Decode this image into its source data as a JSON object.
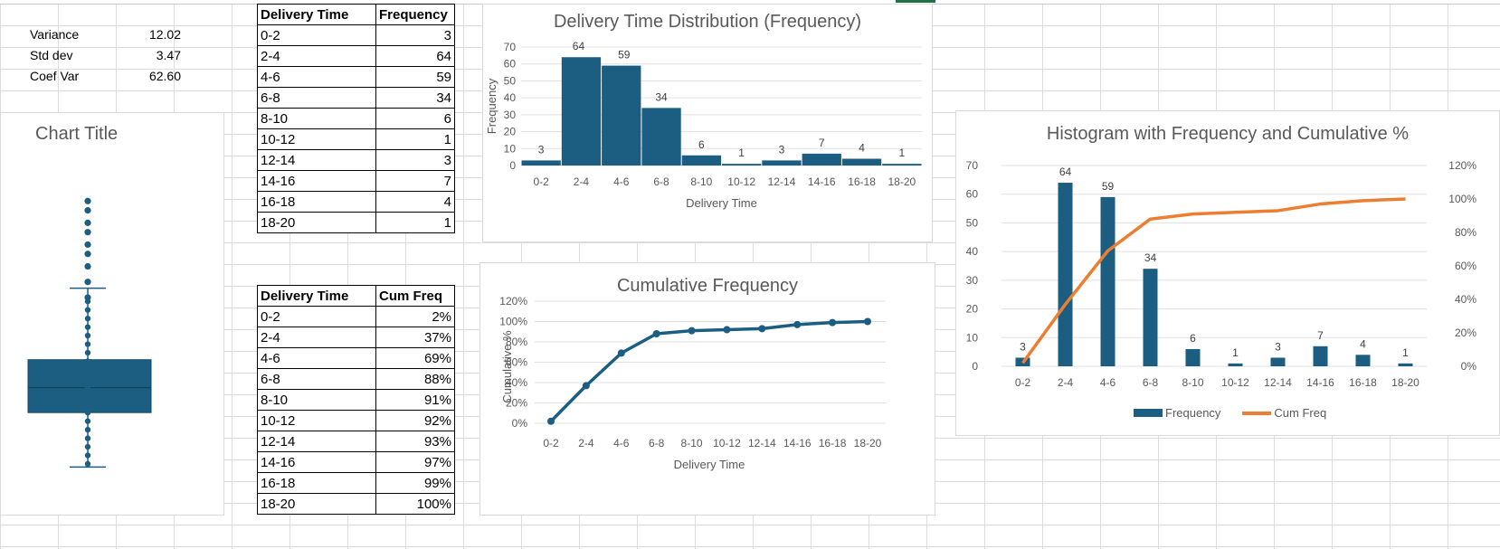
{
  "stats": [
    {
      "label": "Variance",
      "value": "12.02"
    },
    {
      "label": "Std dev",
      "value": "3.47"
    },
    {
      "label": "Coef Var",
      "value": "62.60"
    }
  ],
  "freq_table": {
    "headers": [
      "Delivery Time",
      "Frequency"
    ],
    "rows": [
      [
        "0-2",
        "3"
      ],
      [
        "2-4",
        "64"
      ],
      [
        "4-6",
        "59"
      ],
      [
        "6-8",
        "34"
      ],
      [
        "8-10",
        "6"
      ],
      [
        "10-12",
        "1"
      ],
      [
        "12-14",
        "3"
      ],
      [
        "14-16",
        "7"
      ],
      [
        "16-18",
        "4"
      ],
      [
        "18-20",
        "1"
      ]
    ]
  },
  "cum_table": {
    "headers": [
      "Delivery Time",
      "Cum Freq"
    ],
    "rows": [
      [
        "0-2",
        "2%"
      ],
      [
        "2-4",
        "37%"
      ],
      [
        "4-6",
        "69%"
      ],
      [
        "6-8",
        "88%"
      ],
      [
        "8-10",
        "91%"
      ],
      [
        "10-12",
        "92%"
      ],
      [
        "12-14",
        "93%"
      ],
      [
        "14-16",
        "97%"
      ],
      [
        "16-18",
        "99%"
      ],
      [
        "18-20",
        "100%"
      ]
    ]
  },
  "chart_data": [
    {
      "id": "boxplot",
      "type": "box",
      "title": "Chart Title",
      "color": "#1b5e82",
      "whisker_low": 0.5,
      "q1": 4.0,
      "median": 5.6,
      "q3": 7.4,
      "whisker_high": 12.0,
      "outliers_rel": [
        0.57,
        0.62,
        0.67,
        0.71,
        0.74,
        0.78,
        0.81,
        0.85,
        0.88
      ]
    },
    {
      "id": "hist",
      "type": "bar",
      "title": "Delivery Time Distribution (Frequency)",
      "xlabel": "Delivery Time",
      "ylabel": "Frequency",
      "categories": [
        "0-2",
        "2-4",
        "4-6",
        "6-8",
        "8-10",
        "10-12",
        "12-14",
        "14-16",
        "16-18",
        "18-20"
      ],
      "values": [
        3,
        64,
        59,
        34,
        6,
        1,
        3,
        7,
        4,
        1
      ],
      "ylim": [
        0,
        70
      ],
      "yticks": [
        0,
        10,
        20,
        30,
        40,
        50,
        60,
        70
      ],
      "color": "#1b5e82",
      "data_labels": true
    },
    {
      "id": "cum",
      "type": "line",
      "title": "Cumulative Frequency",
      "xlabel": "Delivery Time",
      "ylabel": "Cumulative %",
      "categories": [
        "0-2",
        "2-4",
        "4-6",
        "6-8",
        "8-10",
        "10-12",
        "12-14",
        "14-16",
        "16-18",
        "18-20"
      ],
      "values": [
        2,
        37,
        69,
        88,
        91,
        92,
        93,
        97,
        99,
        100
      ],
      "ylim": [
        0,
        120
      ],
      "yticks": [
        0,
        20,
        40,
        60,
        80,
        100,
        120
      ],
      "ytick_format": "%",
      "color": "#1b5e82"
    },
    {
      "id": "pareto",
      "type": "bar+line",
      "title": "Histogram with Frequency and Cumulative %",
      "categories": [
        "0-2",
        "2-4",
        "4-6",
        "6-8",
        "8-10",
        "10-12",
        "12-14",
        "14-16",
        "16-18",
        "18-20"
      ],
      "series": [
        {
          "name": "Frequency",
          "type": "bar",
          "values": [
            3,
            64,
            59,
            34,
            6,
            1,
            3,
            7,
            4,
            1
          ],
          "color": "#1b5e82",
          "axis": "left"
        },
        {
          "name": "Cum Freq",
          "type": "line",
          "values": [
            2,
            37,
            69,
            88,
            91,
            92,
            93,
            97,
            99,
            100
          ],
          "color": "#ed7d31",
          "axis": "right"
        }
      ],
      "ylim_left": [
        0,
        70
      ],
      "yticks_left": [
        0,
        10,
        20,
        30,
        40,
        50,
        60,
        70
      ],
      "ylim_right": [
        0,
        120
      ],
      "yticks_right": [
        0,
        20,
        40,
        60,
        80,
        100,
        120
      ],
      "legend": "bottom"
    }
  ]
}
